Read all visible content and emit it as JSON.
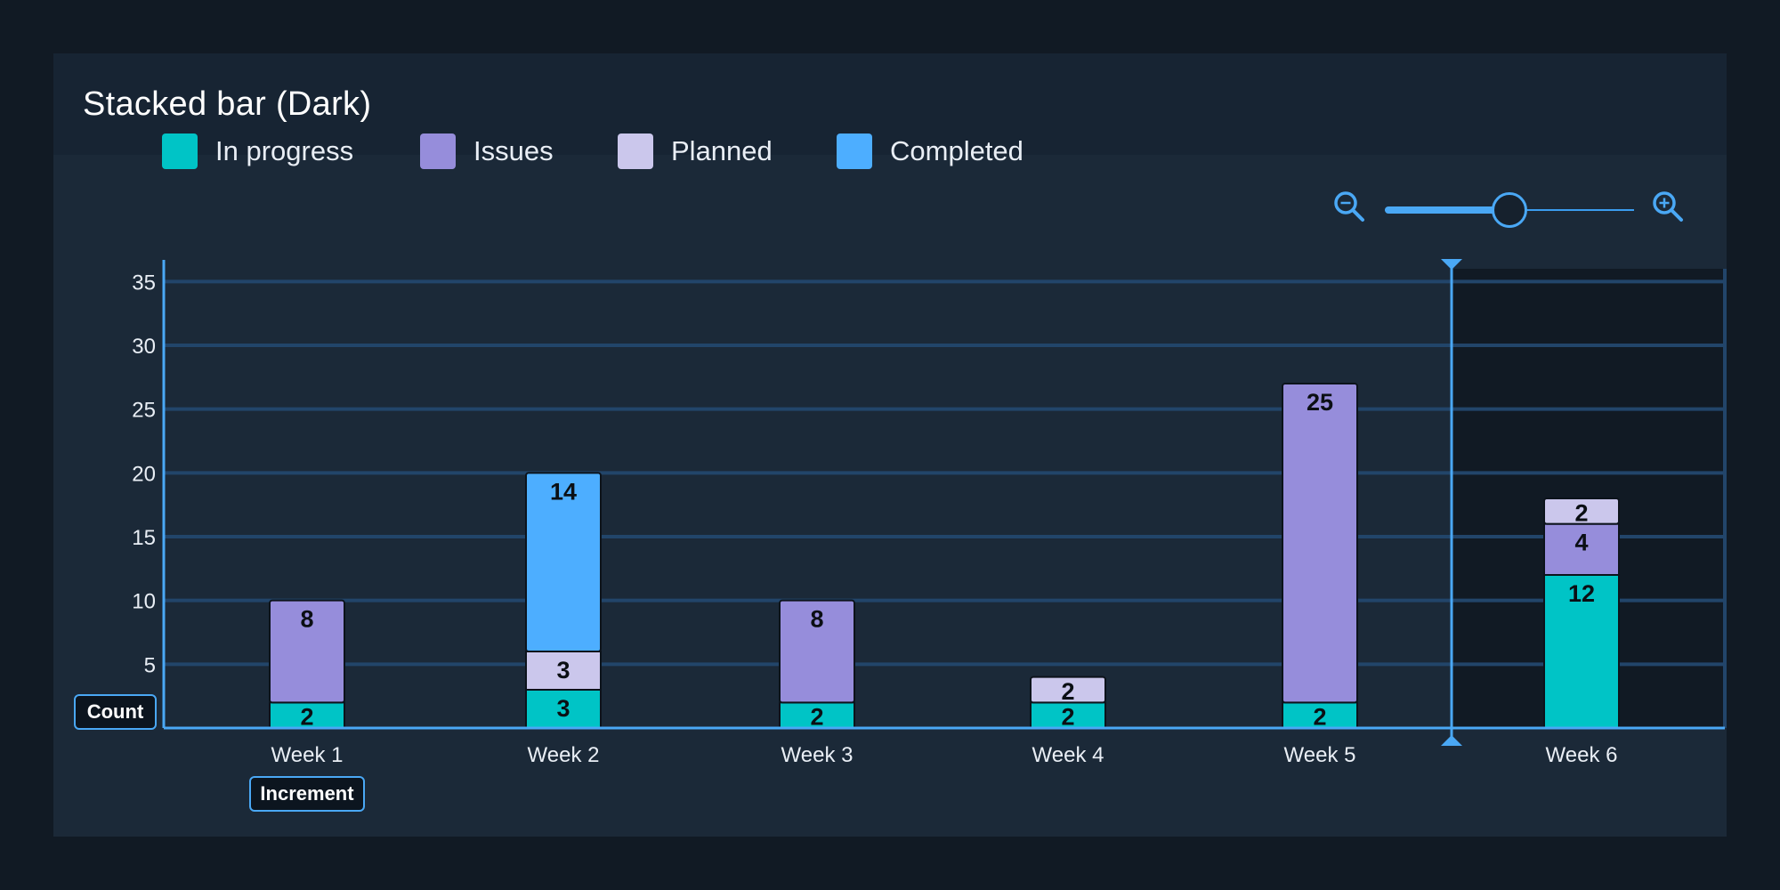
{
  "header": {
    "title": "Stacked bar (Dark)"
  },
  "legend": [
    {
      "label": "In progress",
      "color": "#00c4c6"
    },
    {
      "label": "Issues",
      "color": "#968ddb"
    },
    {
      "label": "Planned",
      "color": "#cbc7ec"
    },
    {
      "label": "Completed",
      "color": "#4daeff"
    }
  ],
  "controls": {
    "zoom_out_icon": "zoom-out-icon",
    "zoom_in_icon": "zoom-in-icon",
    "zoom_level": 0.5
  },
  "tags": {
    "y_axis": "Count",
    "x_axis": "Increment"
  },
  "colors": {
    "axis": "#4aa8f5",
    "grid": "#22456a",
    "highlight_region": "#111a24",
    "tick_text": "#e9eef5",
    "bar_outline": "#0c131b"
  },
  "chart_data": {
    "type": "bar",
    "stacked": true,
    "categories": [
      "Week 1",
      "Week 2",
      "Week 3",
      "Week 4",
      "Week 5",
      "Week 6"
    ],
    "series": [
      {
        "name": "In progress",
        "values": [
          2,
          3,
          2,
          2,
          2,
          12
        ]
      },
      {
        "name": "Issues",
        "values": [
          8,
          0,
          8,
          0,
          25,
          4
        ]
      },
      {
        "name": "Planned",
        "values": [
          0,
          3,
          0,
          2,
          0,
          2
        ]
      },
      {
        "name": "Completed",
        "values": [
          0,
          14,
          0,
          0,
          0,
          0
        ]
      }
    ],
    "yticks": [
      5,
      10,
      15,
      20,
      25,
      30,
      35
    ],
    "ylim": [
      0,
      36
    ],
    "grid": true,
    "highlight_category": "Week 6",
    "xlabel": "Increment",
    "ylabel": "Count"
  }
}
